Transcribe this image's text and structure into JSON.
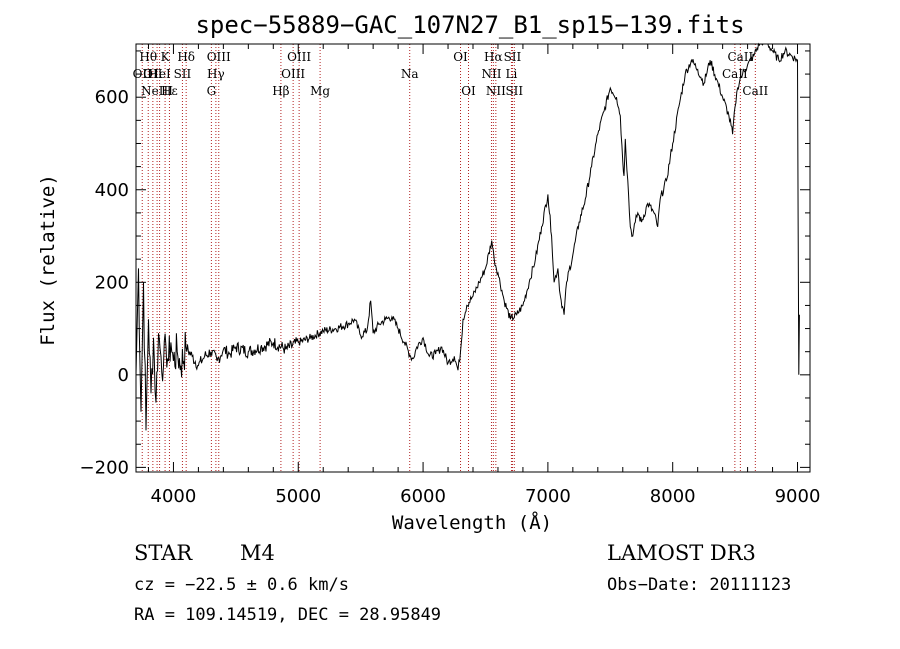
{
  "chart_data": {
    "type": "line",
    "title": "spec−55889−GAC_107N27_B1_sp15−139.fits",
    "xlabel": "Wavelength (Å)",
    "ylabel": "Flux (relative)",
    "xlim": [
      3700,
      9100
    ],
    "ylim": [
      -210,
      715
    ],
    "x_ticks": [
      4000,
      5000,
      6000,
      7000,
      8000,
      9000
    ],
    "y_ticks": [
      -200,
      0,
      200,
      400,
      600
    ],
    "y_tick_labels": [
      "−200",
      "0",
      "200",
      "400",
      "600"
    ],
    "series": [
      {
        "name": "spectrum",
        "x": [
          3700,
          3720,
          3740,
          3760,
          3780,
          3800,
          3820,
          3840,
          3860,
          3880,
          3900,
          3920,
          3940,
          3960,
          3980,
          4000,
          4030,
          4060,
          4100,
          4150,
          4200,
          4250,
          4300,
          4350,
          4400,
          4450,
          4500,
          4600,
          4700,
          4800,
          4900,
          5000,
          5100,
          5200,
          5300,
          5400,
          5450,
          5500,
          5550,
          5580,
          5600,
          5650,
          5700,
          5750,
          5800,
          5850,
          5900,
          5920,
          5950,
          6000,
          6050,
          6100,
          6150,
          6200,
          6250,
          6280,
          6300,
          6320,
          6350,
          6400,
          6450,
          6500,
          6550,
          6570,
          6600,
          6650,
          6700,
          6750,
          6800,
          6850,
          6900,
          6950,
          7000,
          7030,
          7050,
          7080,
          7100,
          7130,
          7150,
          7200,
          7250,
          7300,
          7350,
          7400,
          7450,
          7500,
          7550,
          7580,
          7600,
          7610,
          7620,
          7640,
          7660,
          7680,
          7700,
          7720,
          7750,
          7800,
          7850,
          7880,
          7900,
          7950,
          8000,
          8050,
          8100,
          8150,
          8200,
          8250,
          8300,
          8350,
          8400,
          8450,
          8480,
          8500,
          8520,
          8540,
          8560,
          8600,
          8650,
          8700,
          8750,
          8800,
          8850,
          8900,
          8950,
          9000,
          9010,
          9015
        ],
        "y": [
          0,
          230,
          -80,
          200,
          -120,
          120,
          -40,
          80,
          -60,
          90,
          40,
          20,
          60,
          30,
          70,
          30,
          50,
          20,
          60,
          40,
          20,
          40,
          50,
          30,
          55,
          45,
          60,
          50,
          60,
          70,
          55,
          70,
          80,
          95,
          100,
          110,
          120,
          85,
          95,
          160,
          90,
          110,
          120,
          125,
          100,
          70,
          40,
          35,
          60,
          80,
          40,
          45,
          60,
          25,
          40,
          10,
          50,
          120,
          150,
          170,
          200,
          230,
          290,
          250,
          220,
          160,
          120,
          130,
          150,
          200,
          250,
          320,
          390,
          300,
          200,
          230,
          170,
          130,
          200,
          260,
          330,
          380,
          450,
          520,
          570,
          620,
          600,
          560,
          460,
          430,
          510,
          420,
          320,
          300,
          330,
          350,
          330,
          370,
          350,
          320,
          380,
          420,
          500,
          580,
          650,
          680,
          660,
          630,
          680,
          640,
          600,
          560,
          520,
          580,
          620,
          640,
          650,
          670,
          690,
          720,
          720,
          700,
          680,
          700,
          690,
          680,
          0,
          130
        ]
      }
    ],
    "line_markers": [
      {
        "wl": 3750,
        "label": "OII",
        "row": 2
      },
      {
        "wl": 3798,
        "label": "Hθ",
        "row": 1
      },
      {
        "wl": 3835,
        "label": "OII",
        "row": 2
      },
      {
        "wl": 3869,
        "label": "NeIII",
        "row": 3
      },
      {
        "wl": 3889,
        "label": "HeI",
        "row": 2
      },
      {
        "wl": 3933,
        "label": "K",
        "row": 1
      },
      {
        "wl": 3968,
        "label": "Hε",
        "row": 3
      },
      {
        "wl": 4072,
        "label": "SII",
        "row": 2
      },
      {
        "wl": 4102,
        "label": "Hδ",
        "row": 1
      },
      {
        "wl": 4304,
        "label": "G",
        "row": 3
      },
      {
        "wl": 4340,
        "label": "Hγ",
        "row": 2
      },
      {
        "wl": 4363,
        "label": "OIII",
        "row": 1
      },
      {
        "wl": 4861,
        "label": "Hβ",
        "row": 3
      },
      {
        "wl": 4959,
        "label": "OIII",
        "row": 2
      },
      {
        "wl": 5007,
        "label": "OIII",
        "row": 1
      },
      {
        "wl": 5175,
        "label": "Mg",
        "row": 3
      },
      {
        "wl": 5893,
        "label": "Na",
        "row": 2
      },
      {
        "wl": 6300,
        "label": "OI",
        "row": 1
      },
      {
        "wl": 6364,
        "label": "OI",
        "row": 3
      },
      {
        "wl": 6548,
        "label": "NII",
        "row": 2
      },
      {
        "wl": 6563,
        "label": "Hα",
        "row": 1
      },
      {
        "wl": 6583,
        "label": "NII",
        "row": 3
      },
      {
        "wl": 6708,
        "label": "Li",
        "row": 2
      },
      {
        "wl": 6716,
        "label": "SII",
        "row": 1
      },
      {
        "wl": 6731,
        "label": "SII",
        "row": 3
      },
      {
        "wl": 8498,
        "label": "CaII",
        "row": 2
      },
      {
        "wl": 8542,
        "label": "CaII",
        "row": 1
      },
      {
        "wl": 8662,
        "label": "CaII",
        "row": 3
      }
    ]
  },
  "info": {
    "class": "STAR",
    "subclass": "M4",
    "survey": "LAMOST DR3",
    "cz": "cz = −22.5 ± 0.6 km/s",
    "obs_date": "Obs−Date: 20111123",
    "radec": "RA = 109.14519, DEC =  28.95849"
  },
  "colors": {
    "marker_line": "#b22222",
    "spectrum": "#000000"
  }
}
